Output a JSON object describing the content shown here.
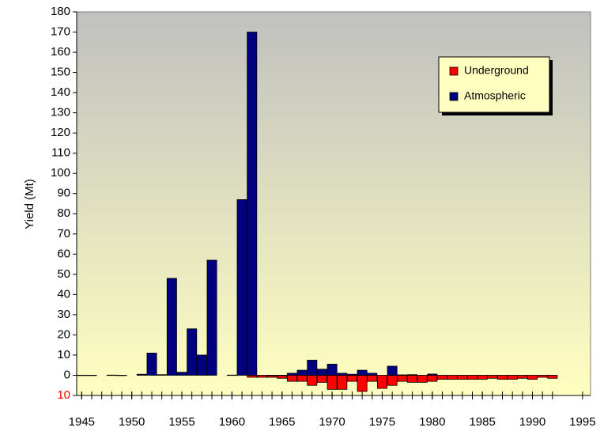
{
  "chart_data": {
    "type": "bar",
    "y_label": "Yield (Mt)",
    "x": [
      1945,
      1946,
      1947,
      1948,
      1949,
      1950,
      1951,
      1952,
      1953,
      1954,
      1955,
      1956,
      1957,
      1958,
      1959,
      1960,
      1961,
      1962,
      1963,
      1964,
      1965,
      1966,
      1967,
      1968,
      1969,
      1970,
      1971,
      1972,
      1973,
      1974,
      1975,
      1976,
      1977,
      1978,
      1979,
      1980,
      1981,
      1982,
      1983,
      1984,
      1985,
      1986,
      1987,
      1988,
      1989,
      1990,
      1991,
      1992
    ],
    "series": [
      {
        "name": "Underground",
        "color": "#ff0000",
        "values": [
          null,
          null,
          null,
          null,
          null,
          null,
          null,
          null,
          null,
          null,
          null,
          null,
          null,
          null,
          null,
          null,
          null,
          -1,
          -1,
          -1,
          -1.5,
          -3,
          -3,
          -5,
          -3.5,
          -7,
          -7,
          -3,
          -8,
          -3,
          -6.5,
          -5,
          -3,
          -3.5,
          -3.5,
          -3,
          -2,
          -2,
          -2,
          -2,
          -2,
          -1.5,
          -2,
          -2,
          -1.5,
          -2,
          -1,
          -1.5
        ]
      },
      {
        "name": "Atmospheric",
        "color": "#000080",
        "values": [
          0.05,
          0.04,
          null,
          0.1,
          0.02,
          null,
          0.5,
          11,
          0.3,
          48,
          1.5,
          23,
          10,
          57,
          null,
          0.1,
          87,
          170,
          null,
          0.02,
          0.02,
          1,
          2.5,
          7.5,
          3,
          5.5,
          1,
          0.5,
          2.5,
          1,
          null,
          4.5,
          0.2,
          0.3,
          null,
          0.6,
          null,
          null,
          null,
          null,
          null,
          null,
          null,
          null,
          null,
          null,
          null,
          null
        ]
      }
    ],
    "xlim": [
      1944.5,
      1995.8
    ],
    "xticks": [
      1945,
      1950,
      1955,
      1960,
      1965,
      1970,
      1975,
      1980,
      1985,
      1990,
      1995
    ],
    "ylim": [
      -10,
      180
    ],
    "yticks": [
      {
        "value": -10,
        "label": "10"
      },
      0,
      10,
      20,
      30,
      40,
      50,
      60,
      70,
      80,
      90,
      100,
      110,
      120,
      130,
      140,
      150,
      160,
      170,
      180
    ],
    "legend": "upper right",
    "grid": false
  }
}
